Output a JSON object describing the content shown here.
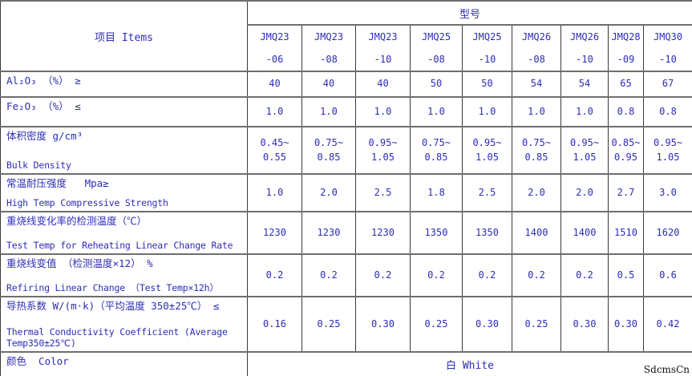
{
  "header": {
    "items": "项目 Items",
    "model": "型号"
  },
  "models": [
    {
      "line1": "JMQ23",
      "line2": "-06"
    },
    {
      "line1": "JMQ23",
      "line2": "-08"
    },
    {
      "line1": "JMQ23",
      "line2": "-10"
    },
    {
      "line1": "JMQ25",
      "line2": "-08"
    },
    {
      "line1": "JMQ25",
      "line2": "-10"
    },
    {
      "line1": "JMQ26",
      "line2": "-08"
    },
    {
      "line1": "JMQ26",
      "line2": "-10"
    },
    {
      "line1": "JMQ28",
      "line2": "-09"
    },
    {
      "line1": "JMQ30",
      "line2": "-10"
    }
  ],
  "rows": [
    {
      "cn": "Al₂O₃ （%） ≥",
      "en": "",
      "values": [
        "40",
        "40",
        "40",
        "50",
        "50",
        "54",
        "54",
        "65",
        "67"
      ]
    },
    {
      "cn": "Fe₂O₃ （%） ≤",
      "en": "",
      "values": [
        "1.0",
        "1.0",
        "1.0",
        "1.0",
        "1.0",
        "1.0",
        "1.0",
        "0.8",
        "0.8"
      ]
    },
    {
      "cn": "体积密度 g/cm³",
      "en": "Bulk Density",
      "values": [
        "0.45~\n0.55",
        "0.75~\n0.85",
        "0.95~\n1.05",
        "0.75~\n0.85",
        "0.95~\n1.05",
        "0.75~\n0.85",
        "0.95~\n1.05",
        "0.85~\n0.95",
        "0.95~\n1.05"
      ]
    },
    {
      "cn": "常温耐压强度   Mpa≥",
      "en": "High Temp Compressive Strength",
      "values": [
        "1.0",
        "2.0",
        "2.5",
        "1.8",
        "2.5",
        "2.0",
        "2.0",
        "2.7",
        "3.0"
      ]
    },
    {
      "cn": "重烧线变化率的检测温度（℃）",
      "en": "Test Temp for Reheating Linear Change Rate",
      "values": [
        "1230",
        "1230",
        "1230",
        "1350",
        "1350",
        "1400",
        "1400",
        "1510",
        "1620"
      ]
    },
    {
      "cn": "重烧线变值 （检测温度×12） %",
      "en": "Refiring Linear Change （Test Temp×12h）",
      "values": [
        "0.2",
        "0.2",
        "0.2",
        "0.2",
        "0.2",
        "0.2",
        "0.2",
        "0.5",
        "0.6"
      ]
    },
    {
      "cn": "导热系数 W/(m·k)（平均温度 350±25℃） ≤",
      "en": "Thermal Conductivity Coefficient (Average\nTemp350±25℃)",
      "values": [
        "0.16",
        "0.25",
        "0.30",
        "0.25",
        "0.30",
        "0.25",
        "0.30",
        "0.30",
        "0.42"
      ]
    }
  ],
  "color_row": {
    "label": "颜色  Color",
    "value": "白  White"
  },
  "watermark": "SdcmsCn",
  "colors": {
    "text_blue": "#2d2db8",
    "grid_horizontal": "#6e6e6e",
    "grid_vertical": "#3a3a3a",
    "background": "#ffffff"
  }
}
